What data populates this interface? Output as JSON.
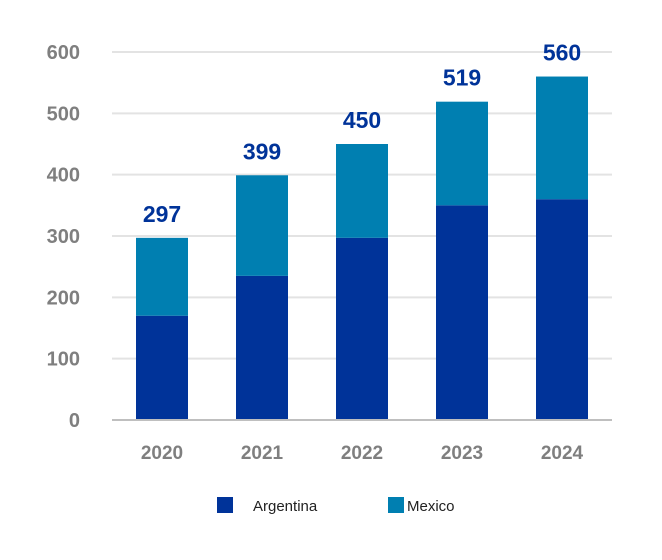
{
  "chart_data": {
    "type": "bar",
    "stacked": true,
    "categories": [
      "2020",
      "2021",
      "2022",
      "2023",
      "2024"
    ],
    "series": [
      {
        "name": "Argentina",
        "color": "#003399",
        "values": [
          170,
          235,
          297,
          350,
          360
        ]
      },
      {
        "name": "Mexico",
        "color": "#007FB1",
        "values": [
          127,
          164,
          153,
          169,
          200
        ]
      }
    ],
    "totals": [
      "297",
      "399",
      "450",
      "519",
      "560"
    ],
    "yticks": [
      "0",
      "100",
      "200",
      "300",
      "400",
      "500",
      "600"
    ],
    "ylim": [
      0,
      600
    ],
    "grid": true,
    "legend": "bottom",
    "title": "",
    "xlabel": "",
    "ylabel": ""
  }
}
